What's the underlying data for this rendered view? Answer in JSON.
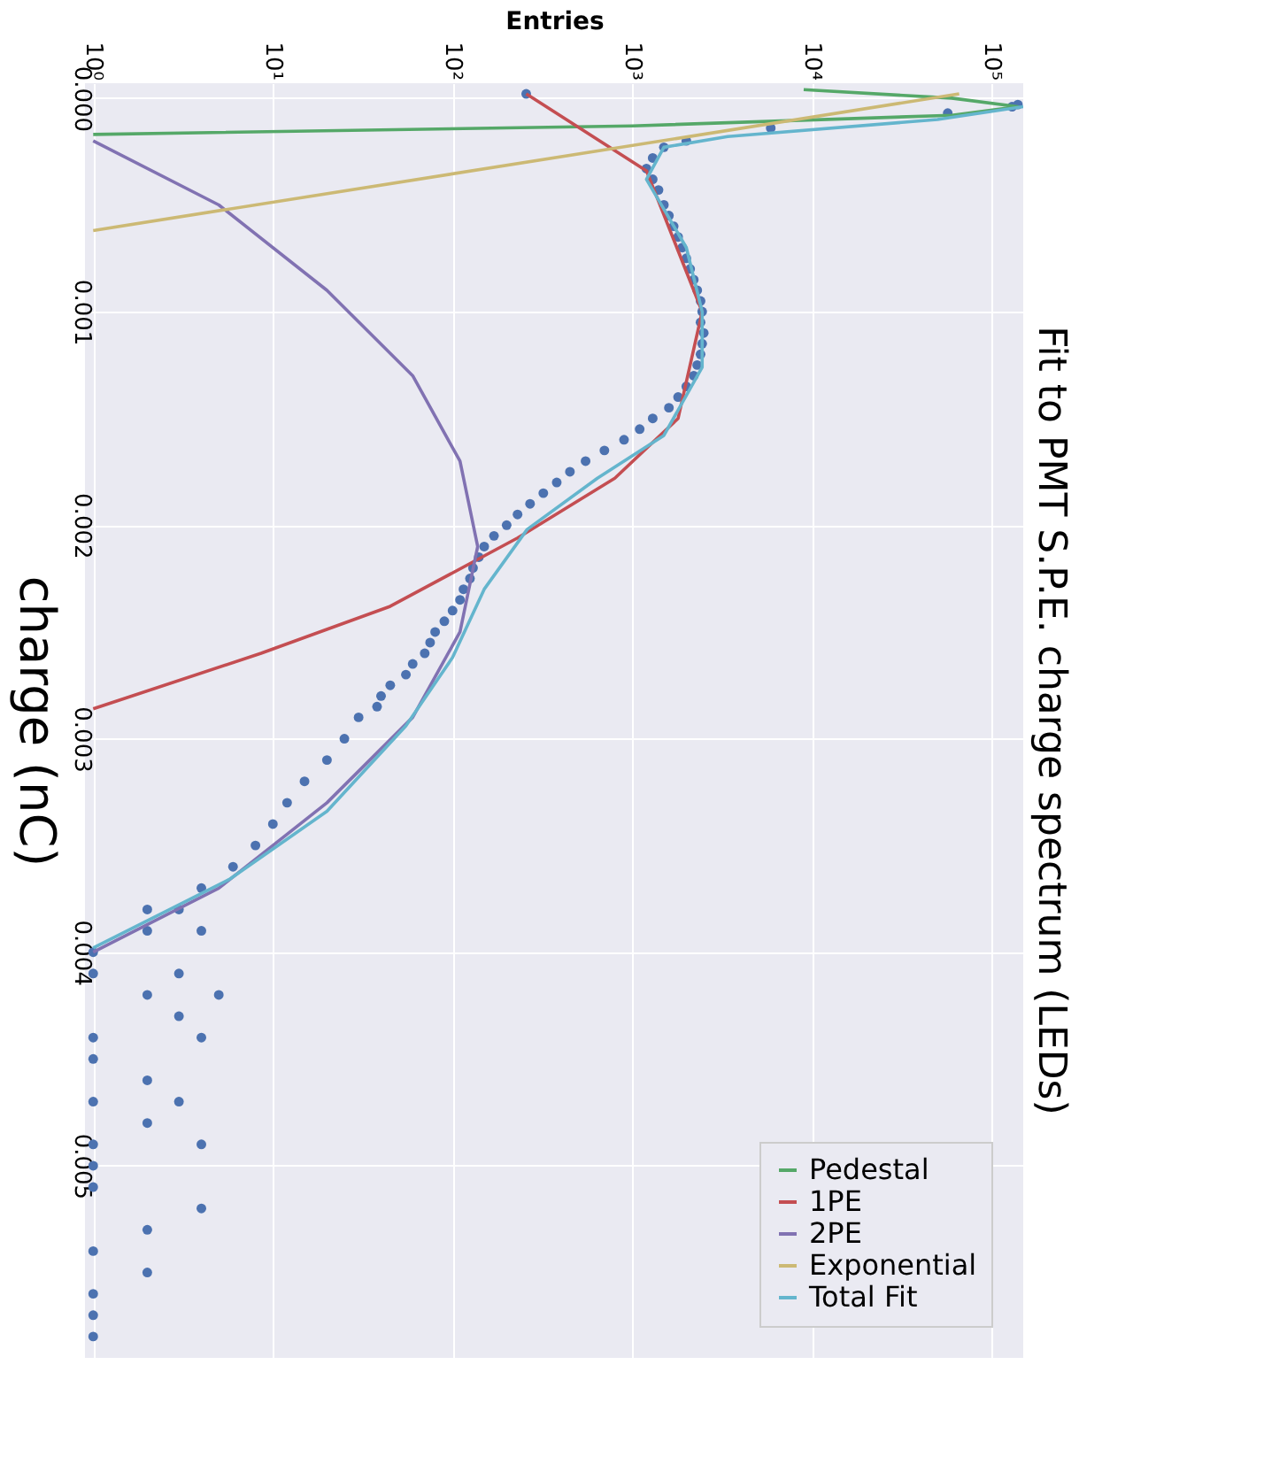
{
  "chart_data": {
    "type": "scatter",
    "title": "Fit to PMT S.P.E. charge spectrum (LEDs)",
    "xlabel": "Entries",
    "ylabel": "charge (nC)",
    "log": "x",
    "grid": true,
    "legend": "bottom right",
    "xlim": [
      0.9,
      150000
    ],
    "ylim": [
      0.0059,
      -7e-05
    ],
    "xticks": [
      {
        "value": 1,
        "label": "10⁰"
      },
      {
        "value": 10,
        "label": "10¹"
      },
      {
        "value": 100,
        "label": "10²"
      },
      {
        "value": 1000,
        "label": "10³"
      },
      {
        "value": 10000,
        "label": "10⁴"
      },
      {
        "value": 100000,
        "label": "10⁵"
      }
    ],
    "yticks": [
      {
        "value": 0,
        "label": "0.000"
      },
      {
        "value": 0.001,
        "label": "0.001"
      },
      {
        "value": 0.002,
        "label": "0.002"
      },
      {
        "value": 0.003,
        "label": "0.003"
      },
      {
        "value": 0.004,
        "label": "0.004"
      },
      {
        "value": 0.005,
        "label": "0.005"
      }
    ],
    "series": [
      {
        "marker": "circle",
        "color": "#4c72b0",
        "x": [
          257,
          130000,
          140000,
          57000,
          5900,
          2000,
          1500,
          1300,
          1200,
          1300,
          1400,
          1500,
          1600,
          1700,
          1800,
          1900,
          2000,
          2100,
          2200,
          2300,
          2400,
          2450,
          2400,
          2500,
          2450,
          2400,
          2300,
          2200,
          2000,
          1800,
          1600,
          1300,
          1100,
          900,
          700,
          550,
          450,
          380,
          320,
          270,
          230,
          200,
          170,
          150,
          140,
          130,
          125,
          115,
          110,
          100,
          90,
          80,
          75,
          70,
          60,
          55,
          45,
          40,
          38,
          30,
          25,
          20,
          15,
          12,
          10,
          8,
          6,
          4,
          3,
          2,
          1,
          2,
          4,
          1,
          3,
          2,
          5,
          3,
          4,
          1,
          1,
          2,
          3,
          1,
          2,
          4,
          1,
          1,
          1,
          4,
          2,
          1,
          2,
          1,
          1,
          1
        ],
        "values": [
          -2e-05,
          4e-05,
          3e-05,
          7e-05,
          0.00014,
          0.0002,
          0.00023,
          0.00028,
          0.00033,
          0.00038,
          0.00043,
          0.0005,
          0.00055,
          0.0006,
          0.00065,
          0.0007,
          0.00075,
          0.0008,
          0.00085,
          0.0009,
          0.00095,
          0.001,
          0.00105,
          0.0011,
          0.00115,
          0.0012,
          0.00125,
          0.0013,
          0.00135,
          0.0014,
          0.00145,
          0.0015,
          0.00155,
          0.0016,
          0.00165,
          0.0017,
          0.00175,
          0.0018,
          0.00185,
          0.0019,
          0.00195,
          0.002,
          0.00205,
          0.0021,
          0.00215,
          0.0022,
          0.00225,
          0.0023,
          0.00235,
          0.0024,
          0.00245,
          0.0025,
          0.00255,
          0.0026,
          0.00265,
          0.0027,
          0.00275,
          0.0028,
          0.00285,
          0.0029,
          0.003,
          0.0031,
          0.0032,
          0.0033,
          0.0034,
          0.0035,
          0.0036,
          0.0037,
          0.0038,
          0.0039,
          0.004,
          0.0038,
          0.0039,
          0.0041,
          0.0041,
          0.0042,
          0.0042,
          0.0043,
          0.0044,
          0.0044,
          0.0045,
          0.0046,
          0.0047,
          0.0047,
          0.0048,
          0.0049,
          0.0049,
          0.005,
          0.0051,
          0.0052,
          0.0053,
          0.0054,
          0.0055,
          0.0056,
          0.0057,
          0.0058
        ]
      },
      {
        "type": "line",
        "line_style": "solid",
        "name": "Pedestal",
        "color": "#55a868",
        "x": [
          9000,
          60000,
          140000,
          60000,
          1000,
          1
        ],
        "values": [
          -4e-05,
          0.0,
          4e-05,
          8e-05,
          0.00013,
          0.00017
        ]
      },
      {
        "type": "line",
        "line_style": "solid",
        "name": "1PE",
        "color": "#c44e52",
        "x": [
          257,
          1200,
          2450,
          1800,
          800,
          230,
          45,
          8.6,
          1
        ],
        "values": [
          -2e-05,
          0.00034,
          0.001,
          0.0015,
          0.00178,
          0.00206,
          0.00238,
          0.0026,
          0.00286
        ]
      },
      {
        "type": "line",
        "line_style": "solid",
        "name": "2PE",
        "color": "#8172b2",
        "x": [
          1,
          5,
          20,
          60,
          110,
          138,
          110,
          60,
          20,
          5,
          1
        ],
        "values": [
          0.0002,
          0.0005,
          0.0009,
          0.0013,
          0.0017,
          0.0021,
          0.0025,
          0.0029,
          0.0033,
          0.0037,
          0.004
        ]
      },
      {
        "type": "line",
        "line_style": "solid",
        "name": "Exponential",
        "color": "#ccb974",
        "x": [
          1,
          66000
        ],
        "values": [
          0.00062,
          -2e-05
        ]
      },
      {
        "type": "line",
        "line_style": "solid",
        "name": "Total Fit",
        "color": "#64b5cd",
        "x": [
          150000,
          50000,
          3400,
          1500,
          1200,
          2000,
          2450,
          2450,
          1500,
          640,
          260,
          150,
          100,
          55,
          20,
          5.7,
          1
        ],
        "values": [
          4e-05,
          0.0001,
          0.00018,
          0.00023,
          0.00038,
          0.0007,
          0.001,
          0.00126,
          0.00158,
          0.00178,
          0.00202,
          0.0023,
          0.00262,
          0.00294,
          0.00334,
          0.00366,
          0.00398
        ]
      }
    ]
  }
}
